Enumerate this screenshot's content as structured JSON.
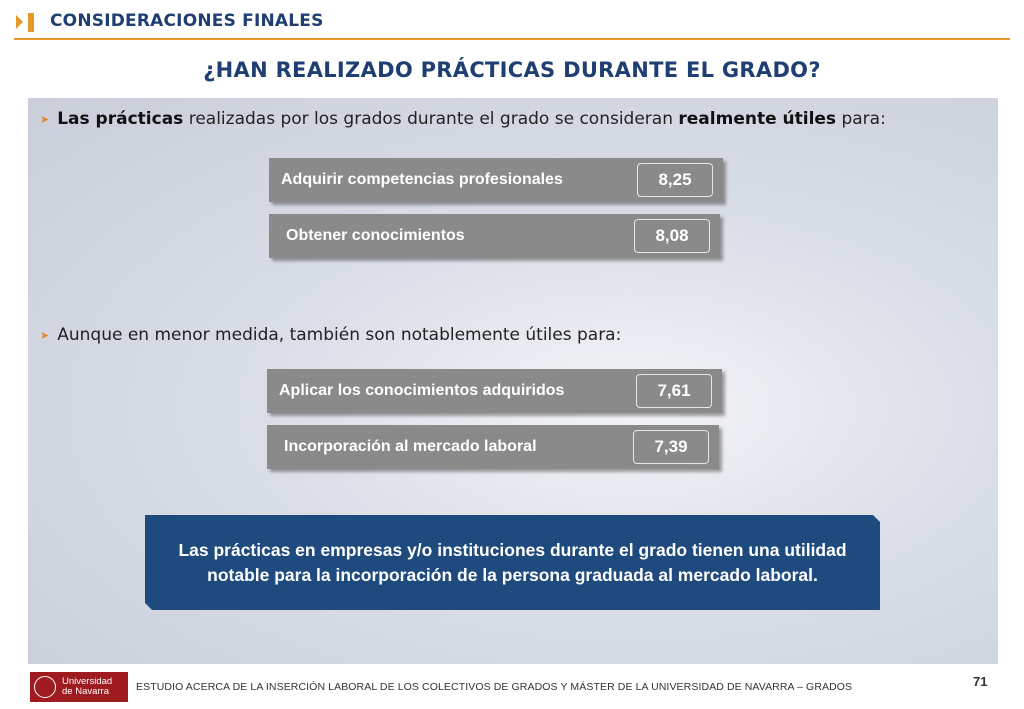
{
  "header": {
    "section_title": "CONSIDERACIONES FINALES",
    "accent_color": "#e39a2b",
    "title_color": "#1f3f73"
  },
  "main_title": "¿HAN REALIZADO PRÁCTICAS DURANTE EL GRADO?",
  "bullet1": {
    "bold_start": "Las prácticas",
    "middle": " realizadas por los grados durante el grado se consideran ",
    "bold_end": "realmente útiles",
    "end": " para:"
  },
  "group1": [
    {
      "label": "Adquirir competencias profesionales",
      "value": "8,25"
    },
    {
      "label": "Obtener conocimientos",
      "value": "8,08"
    }
  ],
  "bullet2": {
    "text": "Aunque en menor medida, también son notablemente útiles para:"
  },
  "group2": [
    {
      "label": "Aplicar los conocimientos adquiridos",
      "value": "7,61"
    },
    {
      "label": "Incorporación al mercado laboral",
      "value": "7,39"
    }
  ],
  "conclusion": "Las prácticas en empresas y/o instituciones durante el grado tienen una utilidad notable para la incorporación de la persona graduada al mercado laboral.",
  "footer": {
    "logo_line1": "Universidad",
    "logo_line2": "de Navarra",
    "text": "ESTUDIO ACERCA DE LA INSERCIÓN LABORAL DE LOS COLECTIVOS DE GRADOS Y MÁSTER DE LA UNIVERSIDAD DE NAVARRA – GRADOS",
    "page_number": "71",
    "brand_color": "#9e1b20"
  }
}
